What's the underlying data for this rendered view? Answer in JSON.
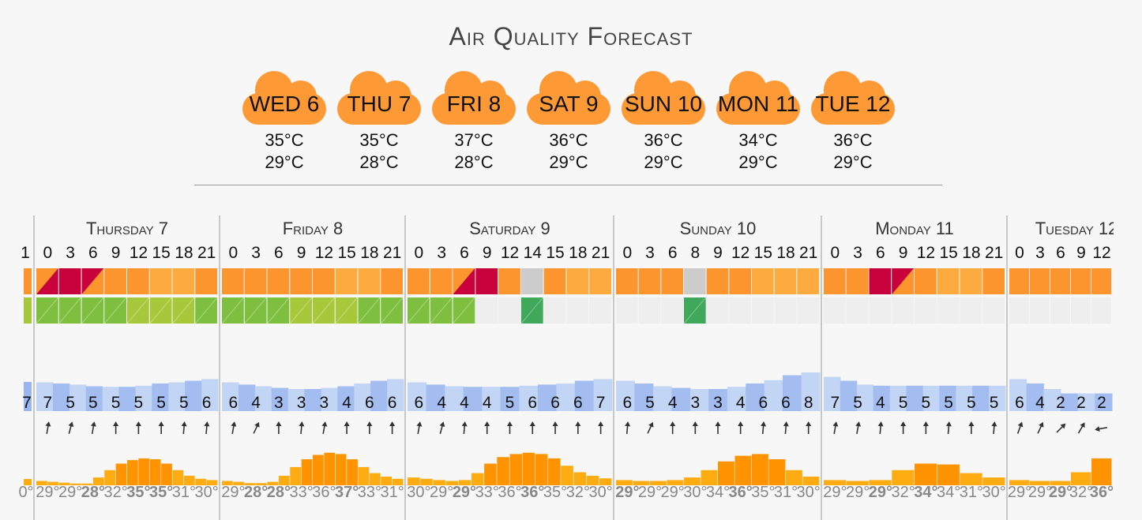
{
  "title": "Air Quality Forecast",
  "days": [
    {
      "label": "WED 6",
      "high": "35°C",
      "low": "29°C"
    },
    {
      "label": "THU 7",
      "high": "35°C",
      "low": "28°C"
    },
    {
      "label": "FRI 8",
      "high": "37°C",
      "low": "28°C"
    },
    {
      "label": "SAT 9",
      "high": "36°C",
      "low": "29°C"
    },
    {
      "label": "SUN 10",
      "high": "36°C",
      "low": "29°C"
    },
    {
      "label": "MON 11",
      "high": "34°C",
      "low": "29°C"
    },
    {
      "label": "TUE 12",
      "high": "36°C",
      "low": "29°C"
    }
  ],
  "colors": {
    "cloud": "#fe9a36",
    "aq_orange": "#fd952f",
    "aq_light_orange": "#fdab3f",
    "aq_red": "#c8003c",
    "aq_grey": "#cccccc",
    "pol_green": "#7fbf3f",
    "pol_yellowgreen": "#a8c83c",
    "pol_darkgreen": "#3fa85a",
    "pol_empty": "#eeeeee",
    "wind_bar": "#9ab6ef",
    "wind_bar_light": "#bcd0f3",
    "temp_bar": "#ffac12",
    "temp_bar_dark": "#ff9400",
    "temp_low": "#3737ff",
    "temp_high": "#ff3030"
  },
  "grid": {
    "left_partial": {
      "hour": "1",
      "wind": "7",
      "temp": "0°"
    },
    "sections": [
      {
        "title": "Thursday 7",
        "hours": [
          "0",
          "3",
          "6",
          "9",
          "12",
          "15",
          "18",
          "21"
        ],
        "aq": [
          "orange-red",
          "red",
          "red-orange",
          "orange",
          "orange",
          "orange-lo",
          "orange-lo",
          "orange"
        ],
        "pol": [
          "green",
          "green",
          "green",
          "green",
          "yg",
          "yg",
          "yg",
          "green"
        ],
        "wind": [
          "7",
          "5",
          "5",
          "5",
          "5",
          "5",
          "5",
          "6"
        ],
        "wind_level": [
          0.52,
          0.5,
          0.48,
          0.45,
          0.44,
          0.44,
          0.46,
          0.5,
          0.52,
          0.55,
          0.58
        ],
        "arrows": [
          10,
          15,
          10,
          0,
          0,
          0,
          5,
          5
        ],
        "temps": [
          "29°",
          "29°",
          "28°",
          "32°",
          "35°",
          "35°",
          "31°",
          "30°"
        ],
        "temp_style": [
          "n",
          "n",
          "low",
          "n",
          "high",
          "high",
          "n",
          "n"
        ],
        "temp_levels": [
          0.1,
          0.08,
          0.06,
          0.04,
          0.04,
          0.18,
          0.35,
          0.5,
          0.58,
          0.62,
          0.6,
          0.5,
          0.35,
          0.22,
          0.15,
          0.12
        ]
      },
      {
        "title": "Friday 8",
        "hours": [
          "0",
          "3",
          "6",
          "9",
          "12",
          "15",
          "18",
          "21"
        ],
        "aq": [
          "orange",
          "orange",
          "orange",
          "orange",
          "orange",
          "orange-lo",
          "orange-lo",
          "orange"
        ],
        "pol": [
          "green",
          "green",
          "green",
          "yg",
          "yg",
          "yg",
          "green",
          "green"
        ],
        "wind": [
          "6",
          "4",
          "3",
          "3",
          "3",
          "4",
          "6",
          "6"
        ],
        "wind_level": [
          0.52,
          0.48,
          0.45,
          0.42,
          0.4,
          0.4,
          0.42,
          0.45,
          0.5,
          0.55,
          0.58
        ],
        "arrows": [
          10,
          25,
          0,
          5,
          10,
          0,
          0,
          0
        ],
        "temps": [
          "29°",
          "28°",
          "28°",
          "33°",
          "36°",
          "37°",
          "33°",
          "31°"
        ],
        "temp_style": [
          "n",
          "low",
          "low",
          "n",
          "n",
          "high",
          "n",
          "n"
        ],
        "temp_levels": [
          0.1,
          0.08,
          0.05,
          0.05,
          0.08,
          0.22,
          0.42,
          0.6,
          0.7,
          0.75,
          0.72,
          0.6,
          0.42,
          0.28,
          0.2,
          0.15
        ]
      },
      {
        "title": "Saturday 9",
        "hours": [
          "0",
          "3",
          "6",
          "9",
          "12",
          "14",
          "15",
          "18",
          "21"
        ],
        "aq": [
          "orange",
          "orange",
          "orange-red",
          "red",
          "orange",
          "grey",
          "orange",
          "orange-lo",
          "orange-lo"
        ],
        "pol": [
          "green",
          "green",
          "green",
          "empty",
          "empty",
          "dgreen",
          "empty",
          "empty",
          "empty"
        ],
        "wind": [
          "6",
          "4",
          "4",
          "4",
          "5",
          "6",
          "6",
          "6",
          "7"
        ],
        "wind_level": [
          0.52,
          0.48,
          0.45,
          0.44,
          0.44,
          0.44,
          0.46,
          0.48,
          0.5,
          0.55,
          0.58
        ],
        "arrows": [
          10,
          15,
          5,
          0,
          0,
          0,
          0,
          0,
          0
        ],
        "temps": [
          "30°",
          "29°",
          "29°",
          "33°",
          "36°",
          "36°",
          "35°",
          "32°",
          "30°"
        ],
        "temp_style": [
          "n",
          "n",
          "low",
          "n",
          "n",
          "high",
          "n",
          "n",
          "n"
        ],
        "temp_levels": [
          0.18,
          0.15,
          0.12,
          0.1,
          0.12,
          0.28,
          0.5,
          0.65,
          0.72,
          0.75,
          0.72,
          0.62,
          0.45,
          0.3,
          0.22,
          0.16
        ]
      },
      {
        "title": "Sunday 10",
        "hours": [
          "0",
          "3",
          "6",
          "8",
          "9",
          "12",
          "15",
          "18",
          "21"
        ],
        "aq": [
          "orange",
          "orange",
          "orange",
          "grey",
          "orange",
          "orange",
          "orange-lo",
          "orange-lo",
          "orange-lo"
        ],
        "pol": [
          "empty",
          "empty",
          "empty",
          "dgreen",
          "empty",
          "empty",
          "empty",
          "empty",
          "empty"
        ],
        "wind": [
          "6",
          "5",
          "4",
          "3",
          "3",
          "4",
          "6",
          "6",
          "8"
        ],
        "wind_level": [
          0.55,
          0.5,
          0.45,
          0.42,
          0.4,
          0.4,
          0.44,
          0.5,
          0.56,
          0.65,
          0.7
        ],
        "arrows": [
          5,
          25,
          0,
          0,
          0,
          0,
          5,
          5,
          0
        ],
        "temps": [
          "29°",
          "29°",
          "29°",
          "30°",
          "34°",
          "36°",
          "35°",
          "31°",
          "30°"
        ],
        "temp_style": [
          "low",
          "n",
          "n",
          "n",
          "n",
          "high",
          "n",
          "n",
          "n"
        ],
        "temp_levels": [
          0.12,
          0.1,
          0.1,
          0.12,
          0.18,
          0.35,
          0.55,
          0.68,
          0.72,
          0.6,
          0.35,
          0.2
        ]
      },
      {
        "title": "Monday 11",
        "hours": [
          "0",
          "3",
          "6",
          "9",
          "12",
          "15",
          "18",
          "21"
        ],
        "aq": [
          "orange",
          "orange",
          "red",
          "red-orange",
          "orange",
          "orange-lo",
          "orange-lo",
          "orange"
        ],
        "pol": [
          "empty",
          "empty",
          "empty",
          "empty",
          "empty",
          "empty",
          "empty",
          "empty"
        ],
        "wind": [
          "7",
          "5",
          "4",
          "5",
          "5",
          "5",
          "5",
          "5"
        ],
        "wind_level": [
          0.62,
          0.55,
          0.48,
          0.46,
          0.46,
          0.46,
          0.46,
          0.46,
          0.46,
          0.46,
          0.46
        ],
        "arrows": [
          10,
          10,
          5,
          0,
          0,
          5,
          0,
          5
        ],
        "temps": [
          "29°",
          "29°",
          "29°",
          "32°",
          "34°",
          "34°",
          "31°",
          "30°"
        ],
        "temp_style": [
          "n",
          "n",
          "low",
          "n",
          "high",
          "n",
          "n",
          "n"
        ],
        "temp_levels": [
          0.12,
          0.1,
          0.12,
          0.35,
          0.5,
          0.48,
          0.28,
          0.18
        ]
      },
      {
        "title": "Tuesday 12",
        "hours": [
          "0",
          "3",
          "6",
          "9",
          "12"
        ],
        "aq": [
          "orange",
          "orange",
          "orange",
          "orange",
          "orange"
        ],
        "pol": [
          "empty",
          "empty",
          "empty",
          "empty",
          "empty"
        ],
        "wind": [
          "6",
          "4",
          "2",
          "2",
          "2"
        ],
        "wind_level": [
          0.58,
          0.5,
          0.4,
          0.32,
          0.32,
          0.32
        ],
        "arrows": [
          20,
          25,
          45,
          30,
          -100
        ],
        "temps": [
          "29°",
          "29°",
          "29°",
          "32°",
          "36°"
        ],
        "temp_style": [
          "n",
          "n",
          "low",
          "n",
          "high"
        ],
        "temp_levels": [
          0.12,
          0.1,
          0.1,
          0.3,
          0.62
        ]
      }
    ]
  }
}
